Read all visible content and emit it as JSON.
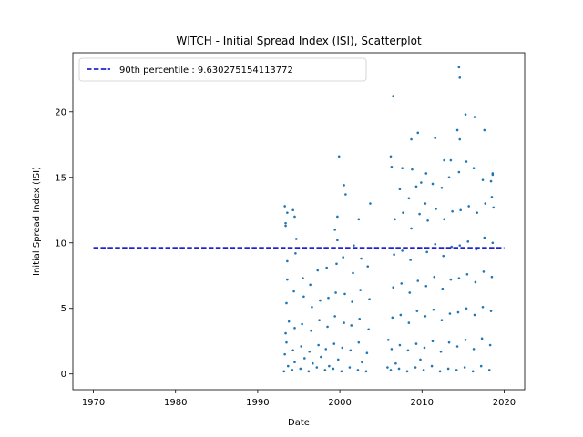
{
  "chart_data": {
    "type": "scatter",
    "title": "WITCH - Initial Spread Index (ISI), Scatterplot",
    "xlabel": "Date",
    "ylabel": "Initial Spread Index (ISI)",
    "xlim": [
      1967.5,
      2022.5
    ],
    "ylim": [
      -1.2,
      24.5
    ],
    "xticks": [
      1970,
      1980,
      1990,
      2000,
      2010,
      2020
    ],
    "yticks": [
      0,
      5,
      10,
      15,
      20
    ],
    "grid": false,
    "legend_position": "top-left",
    "point_color": "#1f77b4",
    "reference_line": {
      "label": "90th percentile : 9.630275154113772",
      "value": 9.630275154113772,
      "x_range": [
        1970,
        2020
      ],
      "color": "#0000cc",
      "style": "dashed"
    },
    "series": [
      {
        "x": [
          1993.2,
          1993.3,
          1993.4,
          1993.5,
          1993.6,
          1993.3,
          1993.4,
          1993.7,
          1993.5,
          1993.8,
          1993.6,
          1994.2,
          1994.3,
          1994.5,
          1994.4,
          1994.6,
          1994.7,
          1994.3,
          1994.5,
          1995.2,
          1995.3,
          1995.4,
          1995.6,
          1995.5,
          1995.7,
          1996.2,
          1996.3,
          1996.5,
          1996.6,
          1996.4,
          1996.7,
          1997.2,
          1997.4,
          1997.5,
          1997.6,
          1997.3,
          1997.7,
          1998.2,
          1998.3,
          1998.5,
          1998.6,
          1998.4,
          1998.7,
          1999.2,
          1999.3,
          1999.4,
          1999.5,
          1999.6,
          1999.7,
          1999.4,
          1999.8,
          2000.2,
          2000.3,
          2000.5,
          2000.6,
          2000.4,
          2000.7,
          2001.2,
          2001.3,
          2001.4,
          2001.5,
          2001.6,
          2001.7,
          2002.2,
          2002.3,
          2002.4,
          2002.5,
          2002.6,
          2002.7,
          2003.2,
          2003.3,
          2003.5,
          2003.6,
          2003.4,
          2003.7,
          2005.8,
          2005.9,
          2006.2,
          2006.3,
          2006.4,
          2006.5,
          2006.6,
          2006.7,
          2006.3,
          2006.8,
          2007.2,
          2007.3,
          2007.4,
          2007.5,
          2007.6,
          2007.7,
          2007.3,
          2008.2,
          2008.3,
          2008.4,
          2008.5,
          2008.6,
          2008.7,
          2008.4,
          2008.8,
          2009.2,
          2009.3,
          2009.4,
          2009.5,
          2009.6,
          2009.7,
          2009.3,
          2009.8,
          2010.2,
          2010.3,
          2010.4,
          2010.5,
          2010.6,
          2010.7,
          2010.4,
          2011.2,
          2011.3,
          2011.4,
          2011.5,
          2011.6,
          2011.7,
          2011.3,
          2012.2,
          2012.3,
          2012.4,
          2012.5,
          2012.6,
          2012.7,
          2012.4,
          2013.2,
          2013.3,
          2013.4,
          2013.5,
          2013.6,
          2013.7,
          2013.3,
          2014.2,
          2014.3,
          2014.4,
          2014.5,
          2014.6,
          2014.7,
          2014.5,
          2014.6,
          2015.2,
          2015.3,
          2015.4,
          2015.5,
          2015.6,
          2015.7,
          2015.4,
          2016.2,
          2016.3,
          2016.4,
          2016.5,
          2016.6,
          2016.7,
          2016.3,
          2017.2,
          2017.3,
          2017.4,
          2017.5,
          2017.6,
          2017.7,
          2017.4,
          2018.2,
          2018.3,
          2018.4,
          2018.5,
          2018.6,
          2018.7,
          2018.5,
          2018.6,
          1993.4,
          1993.6,
          1994.5,
          1999.9,
          1999.7,
          2002.3,
          2006.5,
          2006.2,
          2007.6,
          2008.7,
          2009.5,
          2009.9,
          2011.6,
          2012.7,
          2014.3,
          2014.5,
          2014.6,
          2015.3,
          2016.4,
          2017.6,
          2018.4,
          2018.6,
          2000.5,
          2010.5,
          2013.5
        ],
        "y": [
          0.2,
          1.5,
          3.1,
          5.4,
          7.2,
          12.8,
          11.3,
          0.6,
          2.4,
          4.0,
          8.6,
          0.3,
          1.8,
          3.5,
          6.3,
          9.2,
          10.3,
          12.5,
          0.9,
          0.4,
          2.1,
          3.8,
          5.9,
          7.3,
          1.2,
          0.2,
          1.7,
          3.3,
          5.1,
          6.8,
          0.8,
          0.5,
          2.2,
          4.1,
          5.6,
          7.9,
          1.3,
          0.3,
          1.9,
          3.6,
          5.8,
          8.1,
          0.6,
          0.4,
          2.3,
          4.4,
          6.2,
          8.4,
          10.2,
          11.0,
          1.1,
          0.2,
          2.0,
          3.9,
          6.1,
          8.9,
          13.7,
          0.5,
          1.8,
          3.7,
          5.5,
          7.7,
          9.8,
          0.3,
          2.4,
          4.2,
          6.4,
          8.8,
          0.9,
          0.2,
          1.6,
          3.4,
          5.7,
          8.2,
          13.0,
          0.5,
          2.6,
          0.3,
          1.9,
          4.3,
          6.6,
          9.1,
          11.8,
          15.8,
          0.8,
          0.4,
          2.2,
          4.5,
          6.9,
          9.4,
          12.3,
          14.1,
          0.2,
          1.8,
          3.9,
          6.2,
          8.7,
          11.1,
          13.4,
          15.6,
          0.5,
          2.3,
          4.8,
          7.1,
          9.6,
          12.2,
          14.3,
          1.1,
          0.3,
          2.0,
          4.4,
          6.7,
          9.3,
          11.7,
          13.0,
          0.6,
          2.5,
          4.9,
          7.4,
          9.9,
          12.6,
          14.5,
          0.2,
          1.7,
          4.1,
          6.5,
          9.0,
          11.8,
          14.2,
          0.4,
          2.4,
          4.6,
          7.2,
          9.7,
          12.4,
          15.0,
          0.3,
          2.1,
          4.7,
          7.3,
          9.8,
          12.5,
          15.4,
          17.9,
          0.5,
          2.6,
          5.0,
          7.6,
          10.1,
          12.8,
          16.2,
          0.2,
          1.9,
          4.5,
          7.0,
          9.5,
          12.3,
          15.7,
          0.6,
          2.7,
          5.1,
          7.8,
          10.4,
          13.0,
          14.8,
          0.3,
          2.2,
          4.8,
          7.4,
          10.0,
          12.7,
          13.5,
          15.2,
          11.5,
          12.3,
          12.0,
          16.6,
          12.0,
          11.8,
          21.2,
          16.6,
          15.7,
          17.9,
          18.4,
          14.6,
          18.0,
          16.3,
          18.6,
          23.4,
          22.6,
          19.8,
          19.6,
          18.6,
          14.7,
          15.3,
          14.4,
          15.3,
          16.3
        ]
      }
    ]
  }
}
